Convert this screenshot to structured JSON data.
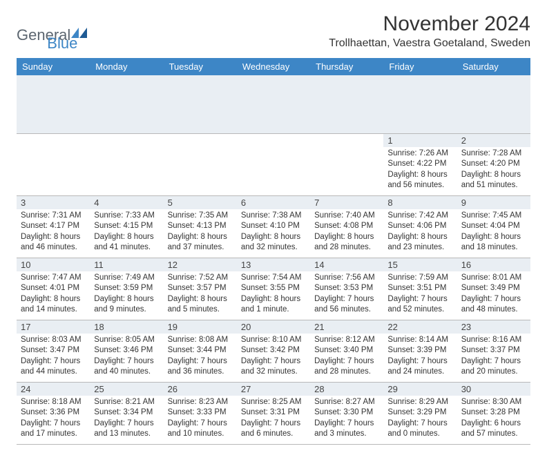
{
  "brand": {
    "text_general": "General",
    "text_blue": "Blue",
    "logo_color": "#3d86c6"
  },
  "header": {
    "month_title": "November 2024",
    "location": "Trollhaettan, Vaestra Goetaland, Sweden"
  },
  "colors": {
    "header_bg": "#3d86c6",
    "header_text": "#ffffff",
    "daynum_bg": "#e9eef3",
    "border": "#b8b8b8",
    "text": "#333333"
  },
  "day_headers": [
    "Sunday",
    "Monday",
    "Tuesday",
    "Wednesday",
    "Thursday",
    "Friday",
    "Saturday"
  ],
  "weeks": [
    [
      null,
      null,
      null,
      null,
      null,
      {
        "num": "1",
        "sunrise": "7:26 AM",
        "sunset": "4:22 PM",
        "daylight": "8 hours and 56 minutes."
      },
      {
        "num": "2",
        "sunrise": "7:28 AM",
        "sunset": "4:20 PM",
        "daylight": "8 hours and 51 minutes."
      }
    ],
    [
      {
        "num": "3",
        "sunrise": "7:31 AM",
        "sunset": "4:17 PM",
        "daylight": "8 hours and 46 minutes."
      },
      {
        "num": "4",
        "sunrise": "7:33 AM",
        "sunset": "4:15 PM",
        "daylight": "8 hours and 41 minutes."
      },
      {
        "num": "5",
        "sunrise": "7:35 AM",
        "sunset": "4:13 PM",
        "daylight": "8 hours and 37 minutes."
      },
      {
        "num": "6",
        "sunrise": "7:38 AM",
        "sunset": "4:10 PM",
        "daylight": "8 hours and 32 minutes."
      },
      {
        "num": "7",
        "sunrise": "7:40 AM",
        "sunset": "4:08 PM",
        "daylight": "8 hours and 28 minutes."
      },
      {
        "num": "8",
        "sunrise": "7:42 AM",
        "sunset": "4:06 PM",
        "daylight": "8 hours and 23 minutes."
      },
      {
        "num": "9",
        "sunrise": "7:45 AM",
        "sunset": "4:04 PM",
        "daylight": "8 hours and 18 minutes."
      }
    ],
    [
      {
        "num": "10",
        "sunrise": "7:47 AM",
        "sunset": "4:01 PM",
        "daylight": "8 hours and 14 minutes."
      },
      {
        "num": "11",
        "sunrise": "7:49 AM",
        "sunset": "3:59 PM",
        "daylight": "8 hours and 9 minutes."
      },
      {
        "num": "12",
        "sunrise": "7:52 AM",
        "sunset": "3:57 PM",
        "daylight": "8 hours and 5 minutes."
      },
      {
        "num": "13",
        "sunrise": "7:54 AM",
        "sunset": "3:55 PM",
        "daylight": "8 hours and 1 minute."
      },
      {
        "num": "14",
        "sunrise": "7:56 AM",
        "sunset": "3:53 PM",
        "daylight": "7 hours and 56 minutes."
      },
      {
        "num": "15",
        "sunrise": "7:59 AM",
        "sunset": "3:51 PM",
        "daylight": "7 hours and 52 minutes."
      },
      {
        "num": "16",
        "sunrise": "8:01 AM",
        "sunset": "3:49 PM",
        "daylight": "7 hours and 48 minutes."
      }
    ],
    [
      {
        "num": "17",
        "sunrise": "8:03 AM",
        "sunset": "3:47 PM",
        "daylight": "7 hours and 44 minutes."
      },
      {
        "num": "18",
        "sunrise": "8:05 AM",
        "sunset": "3:46 PM",
        "daylight": "7 hours and 40 minutes."
      },
      {
        "num": "19",
        "sunrise": "8:08 AM",
        "sunset": "3:44 PM",
        "daylight": "7 hours and 36 minutes."
      },
      {
        "num": "20",
        "sunrise": "8:10 AM",
        "sunset": "3:42 PM",
        "daylight": "7 hours and 32 minutes."
      },
      {
        "num": "21",
        "sunrise": "8:12 AM",
        "sunset": "3:40 PM",
        "daylight": "7 hours and 28 minutes."
      },
      {
        "num": "22",
        "sunrise": "8:14 AM",
        "sunset": "3:39 PM",
        "daylight": "7 hours and 24 minutes."
      },
      {
        "num": "23",
        "sunrise": "8:16 AM",
        "sunset": "3:37 PM",
        "daylight": "7 hours and 20 minutes."
      }
    ],
    [
      {
        "num": "24",
        "sunrise": "8:18 AM",
        "sunset": "3:36 PM",
        "daylight": "7 hours and 17 minutes."
      },
      {
        "num": "25",
        "sunrise": "8:21 AM",
        "sunset": "3:34 PM",
        "daylight": "7 hours and 13 minutes."
      },
      {
        "num": "26",
        "sunrise": "8:23 AM",
        "sunset": "3:33 PM",
        "daylight": "7 hours and 10 minutes."
      },
      {
        "num": "27",
        "sunrise": "8:25 AM",
        "sunset": "3:31 PM",
        "daylight": "7 hours and 6 minutes."
      },
      {
        "num": "28",
        "sunrise": "8:27 AM",
        "sunset": "3:30 PM",
        "daylight": "7 hours and 3 minutes."
      },
      {
        "num": "29",
        "sunrise": "8:29 AM",
        "sunset": "3:29 PM",
        "daylight": "7 hours and 0 minutes."
      },
      {
        "num": "30",
        "sunrise": "8:30 AM",
        "sunset": "3:28 PM",
        "daylight": "6 hours and 57 minutes."
      }
    ]
  ],
  "labels": {
    "sunrise": "Sunrise: ",
    "sunset": "Sunset: ",
    "daylight": "Daylight: "
  }
}
